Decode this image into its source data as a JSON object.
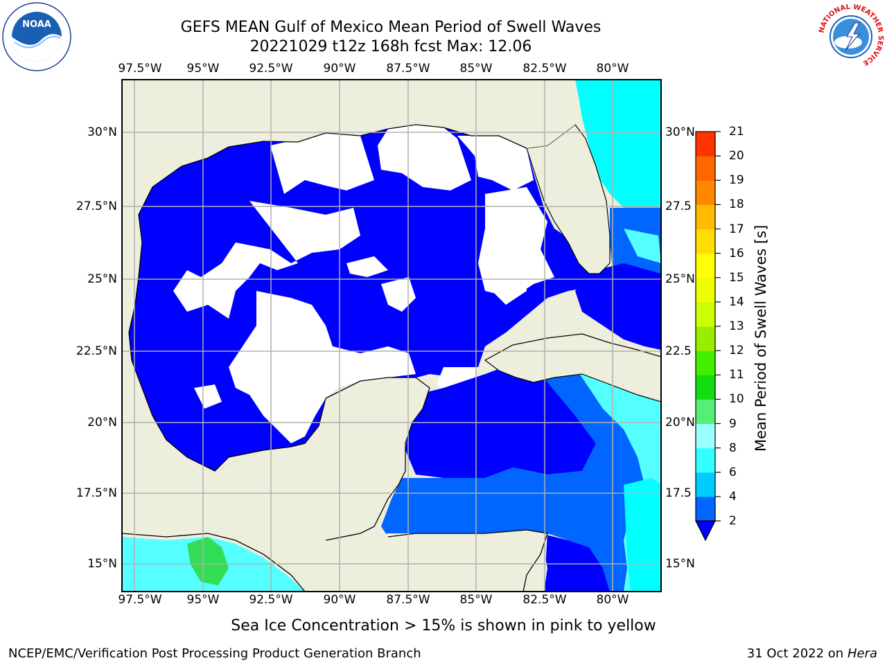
{
  "title": {
    "line1": "GEFS MEAN Gulf of Mexico Mean Period of Swell Waves",
    "line2": "20221029 t12z 168h fcst   Max: 12.06"
  },
  "axes": {
    "lon_labels": [
      "97.5°W",
      "95°W",
      "92.5°W",
      "90°W",
      "87.5°W",
      "85°W",
      "82.5°W",
      "80°W"
    ],
    "lat_labels": [
      "30°N",
      "27.5°N",
      "25°N",
      "22.5°N",
      "20°N",
      "17.5°N",
      "15°N"
    ],
    "lat_labels_right": [
      "30°N",
      "27.5",
      "25°N",
      "22.5",
      "20°N",
      "17.5",
      "15°N"
    ]
  },
  "colorbar": {
    "label": "Mean Period of Swell Waves [s]",
    "ticks": [
      "2",
      "4",
      "6",
      "8",
      "9",
      "10",
      "11",
      "12",
      "13",
      "14",
      "15",
      "16",
      "17",
      "18",
      "19",
      "20",
      "21"
    ],
    "colors": [
      "#0066ff",
      "#00ccff",
      "#33ffff",
      "#99ffff",
      "#55ee77",
      "#11dd11",
      "#44ee00",
      "#99ee00",
      "#ccff00",
      "#eeff00",
      "#ffff00",
      "#ffdd00",
      "#ffbb00",
      "#ff8800",
      "#ff6600",
      "#ff3300",
      "#ff0000"
    ],
    "under_color": "#0000ff"
  },
  "map_colors": {
    "land": "#eeeedd",
    "calm": "#ffffff",
    "deep_blue": "#0000ff",
    "mid_blue": "#0066ff",
    "cyan": "#00ffff",
    "light_cyan": "#55ffff",
    "green": "#33dd55"
  },
  "footer": {
    "note": "Sea Ice Concentration > 15% is shown in pink to yellow",
    "credit_left": "NCEP/EMC/Verification Post Processing Product Generation Branch",
    "credit_right_prefix": "31 Oct 2022 on ",
    "credit_right_host": "Hera"
  },
  "logos": {
    "noaa_text": "NOAA",
    "nws_ring": "NATIONAL WEATHER SERVICE"
  }
}
